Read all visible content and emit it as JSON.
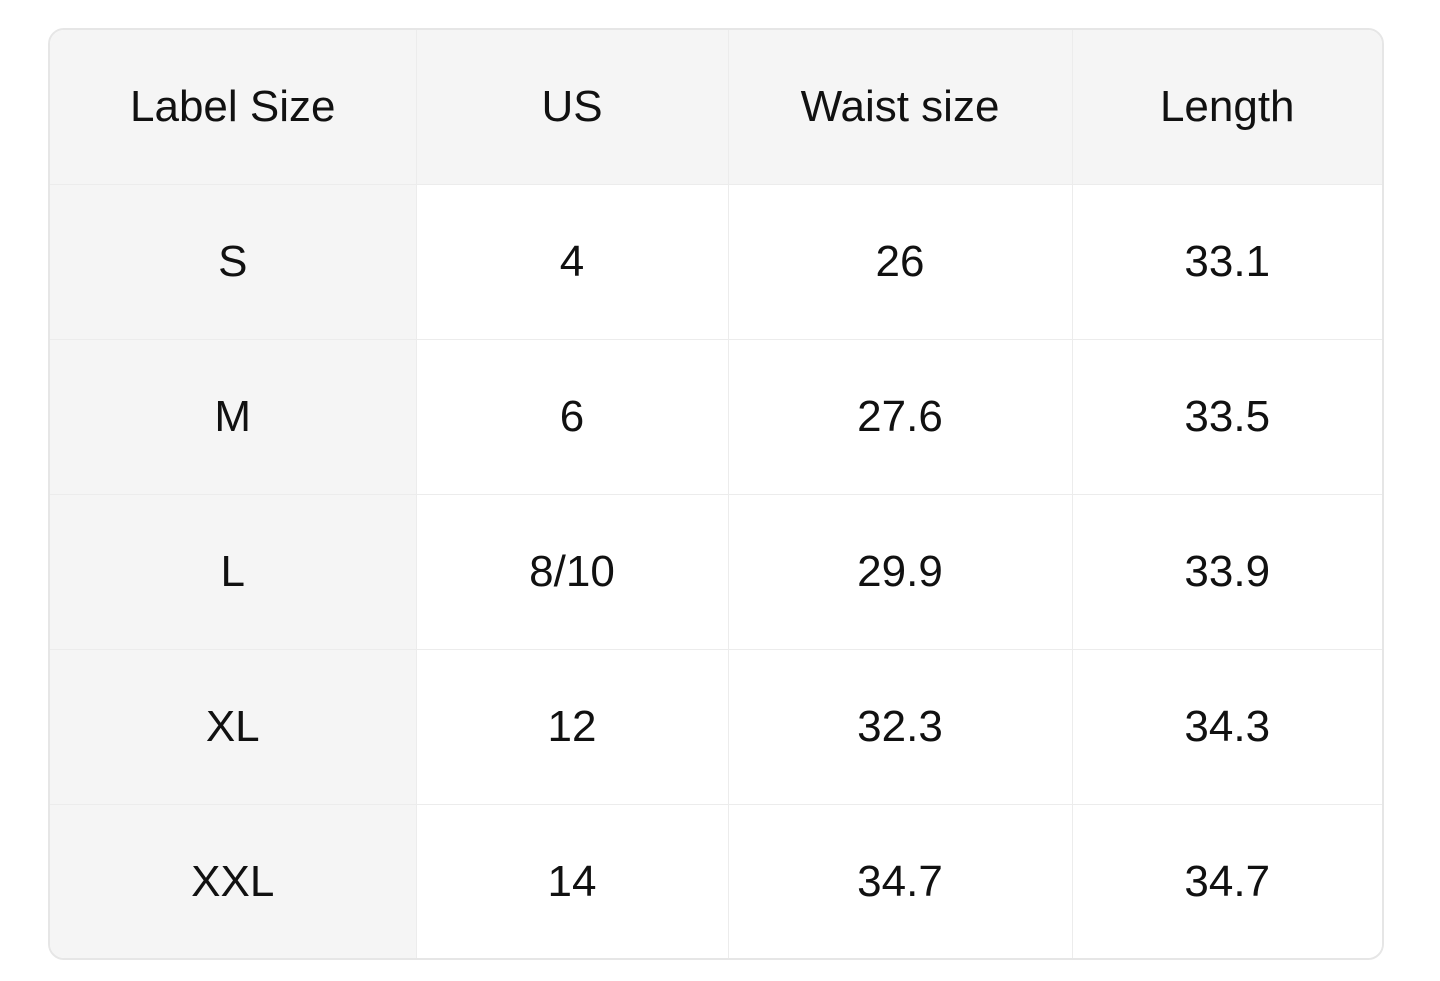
{
  "table": {
    "headers": [
      "Label Size",
      "US",
      "Waist size",
      "Length"
    ],
    "rows": [
      [
        "S",
        "4",
        "26",
        "33.1"
      ],
      [
        "M",
        "6",
        "27.6",
        "33.5"
      ],
      [
        "L",
        "8/10",
        "29.9",
        "33.9"
      ],
      [
        "XL",
        "12",
        "32.3",
        "34.3"
      ],
      [
        "XXL",
        "14",
        "34.7",
        "34.7"
      ]
    ]
  }
}
